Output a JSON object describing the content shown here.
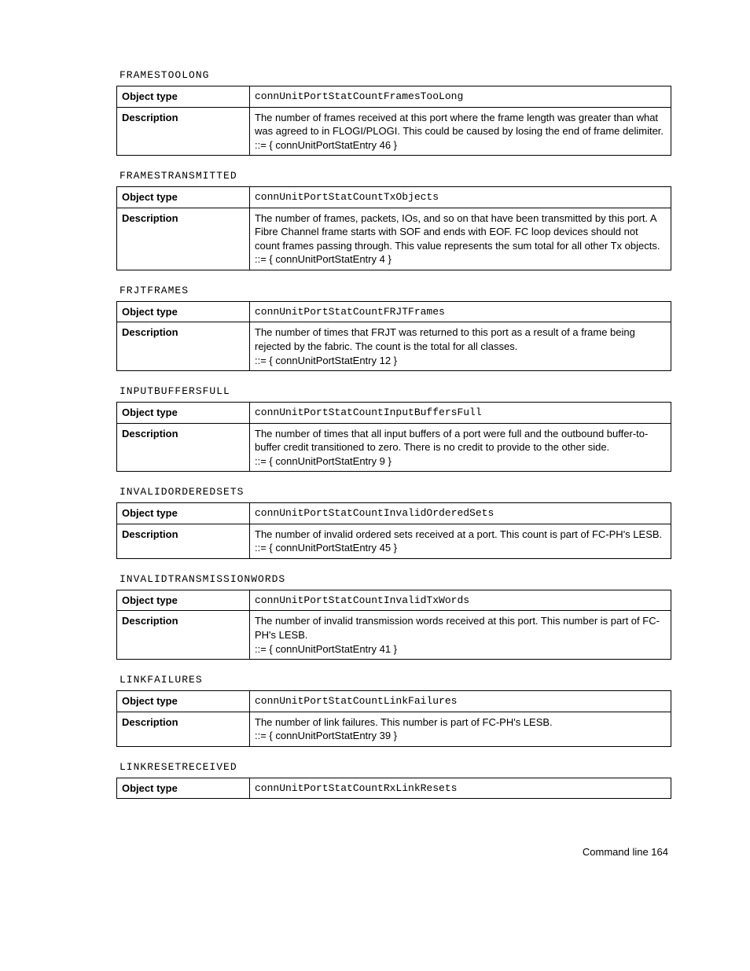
{
  "labels": {
    "object_type": "Object type",
    "description": "Description"
  },
  "sections": [
    {
      "title": "FRAMESTOOLONG",
      "object_type": "connUnitPortStatCountFramesTooLong",
      "description": "The number of frames received at this port where the frame length was greater than what was agreed to in FLOGI/PLOGI. This could be caused by losing the end of frame delimiter.",
      "entry": "::= { connUnitPortStatEntry 46 }"
    },
    {
      "title": "FRAMESTRANSMITTED",
      "object_type": "connUnitPortStatCountTxObjects",
      "description": "The number of frames, packets, IOs, and so on that have been transmitted by this port. A Fibre Channel frame starts with SOF and ends with EOF. FC loop devices should not count frames passing through. This value represents the sum total for all other Tx objects.",
      "entry": "::= { connUnitPortStatEntry 4 }"
    },
    {
      "title": "FRJTFRAMES",
      "object_type": "connUnitPortStatCountFRJTFrames",
      "description": "The number of times that FRJT was returned to this port as a result of a frame being rejected by the fabric. The count is the total for all classes.",
      "entry": "::= { connUnitPortStatEntry 12 }"
    },
    {
      "title": "INPUTBUFFERSFULL",
      "object_type": "connUnitPortStatCountInputBuffersFull",
      "description": "The number of times that all input buffers of a port were full and the outbound buffer-to-buffer credit transitioned to zero. There is no credit to provide to the other side.",
      "entry": "::= { connUnitPortStatEntry 9 }"
    },
    {
      "title": "INVALIDORDEREDSETS",
      "object_type": "connUnitPortStatCountInvalidOrderedSets",
      "description": "The number of invalid ordered sets received at a port. This count is part of FC-PH's LESB.",
      "entry": "::= { connUnitPortStatEntry 45 }"
    },
    {
      "title": "INVALIDTRANSMISSIONWORDS",
      "object_type": "connUnitPortStatCountInvalidTxWords",
      "description": "The number of invalid transmission words received at this port. This number is part of FC-PH's LESB.",
      "entry": "::= { connUnitPortStatEntry 41 }"
    },
    {
      "title": "LINKFAILURES",
      "object_type": "connUnitPortStatCountLinkFailures",
      "description": "The number of link failures. This number is part of FC-PH's LESB.",
      "entry": "::= { connUnitPortStatEntry 39 }"
    },
    {
      "title": "LINKRESETRECEIVED",
      "object_type": "connUnitPortStatCountRxLinkResets",
      "description": "",
      "entry": ""
    }
  ],
  "footer": "Command line    164"
}
